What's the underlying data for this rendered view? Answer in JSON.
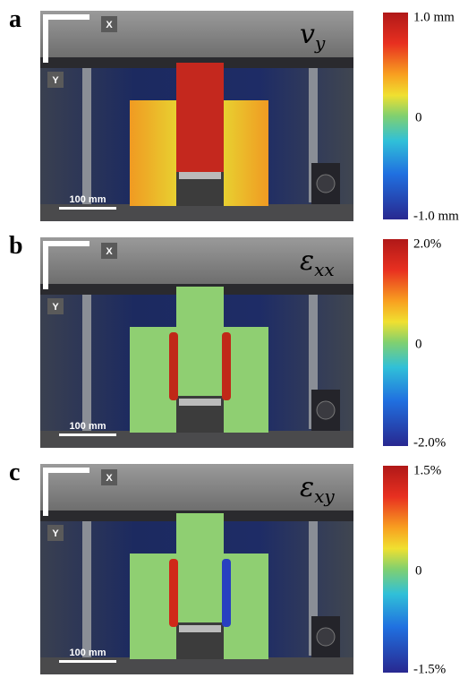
{
  "panels": [
    {
      "label": "a",
      "symbol": "v",
      "subscript": "y",
      "colorbar": {
        "max": "1.0 mm",
        "mid": "0",
        "min": "-1.0 mm"
      },
      "scale_bar": "100 mm",
      "axes": {
        "x": "X",
        "y": "Y"
      }
    },
    {
      "label": "b",
      "symbol": "ε",
      "subscript": "xx",
      "colorbar": {
        "max": "2.0%",
        "mid": "0",
        "min": "-2.0%"
      },
      "scale_bar": "100 mm",
      "axes": {
        "x": "X",
        "y": "Y"
      }
    },
    {
      "label": "c",
      "symbol": "ε",
      "subscript": "xy",
      "colorbar": {
        "max": "1.5%",
        "mid": "0",
        "min": "-1.5%"
      },
      "scale_bar": "100 mm",
      "axes": {
        "x": "X",
        "y": "Y"
      }
    }
  ]
}
